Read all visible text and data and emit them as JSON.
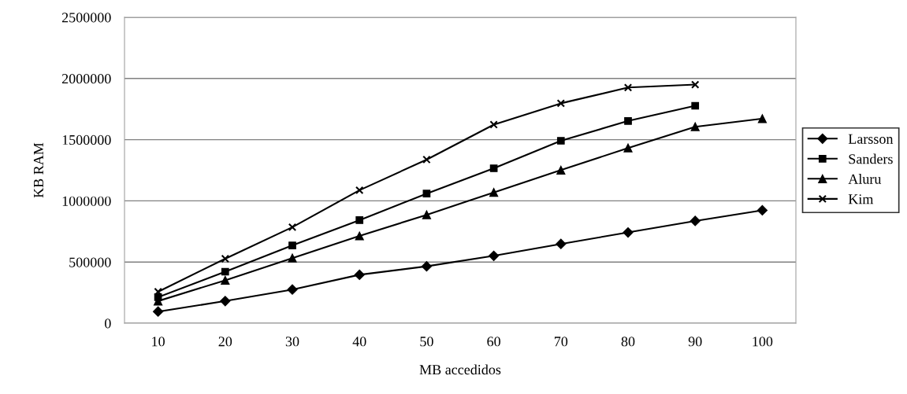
{
  "chart_data": {
    "type": "line",
    "xlabel": "MB accedidos",
    "ylabel": "KB RAM",
    "categories": [
      "10",
      "20",
      "30",
      "40",
      "50",
      "60",
      "70",
      "80",
      "90",
      "100"
    ],
    "series": [
      {
        "name": "Larsson",
        "color": "#000000",
        "marker": "diamond",
        "values": [
          95000,
          181000,
          275000,
          396000,
          465000,
          551000,
          648000,
          742000,
          836000,
          923000
        ]
      },
      {
        "name": "Sanders",
        "color": "#000000",
        "marker": "square",
        "values": [
          213000,
          421000,
          636000,
          842000,
          1059000,
          1266000,
          1491000,
          1653000,
          1777000,
          null
        ]
      },
      {
        "name": "Aluru",
        "color": "#000000",
        "marker": "triangle",
        "values": [
          181000,
          351000,
          532000,
          713000,
          886000,
          1069000,
          1251000,
          1432000,
          1605000,
          1672000
        ]
      },
      {
        "name": "Kim",
        "color": "#000000",
        "marker": "cross",
        "values": [
          257000,
          527000,
          785000,
          1087000,
          1337000,
          1623000,
          1797000,
          1926000,
          1950000,
          null
        ]
      }
    ],
    "ylim": [
      0,
      2500000
    ],
    "yticks": [
      0,
      500000,
      1000000,
      1500000,
      2000000,
      2500000
    ],
    "grid": "y",
    "legend": "right",
    "line_style": "solid"
  }
}
